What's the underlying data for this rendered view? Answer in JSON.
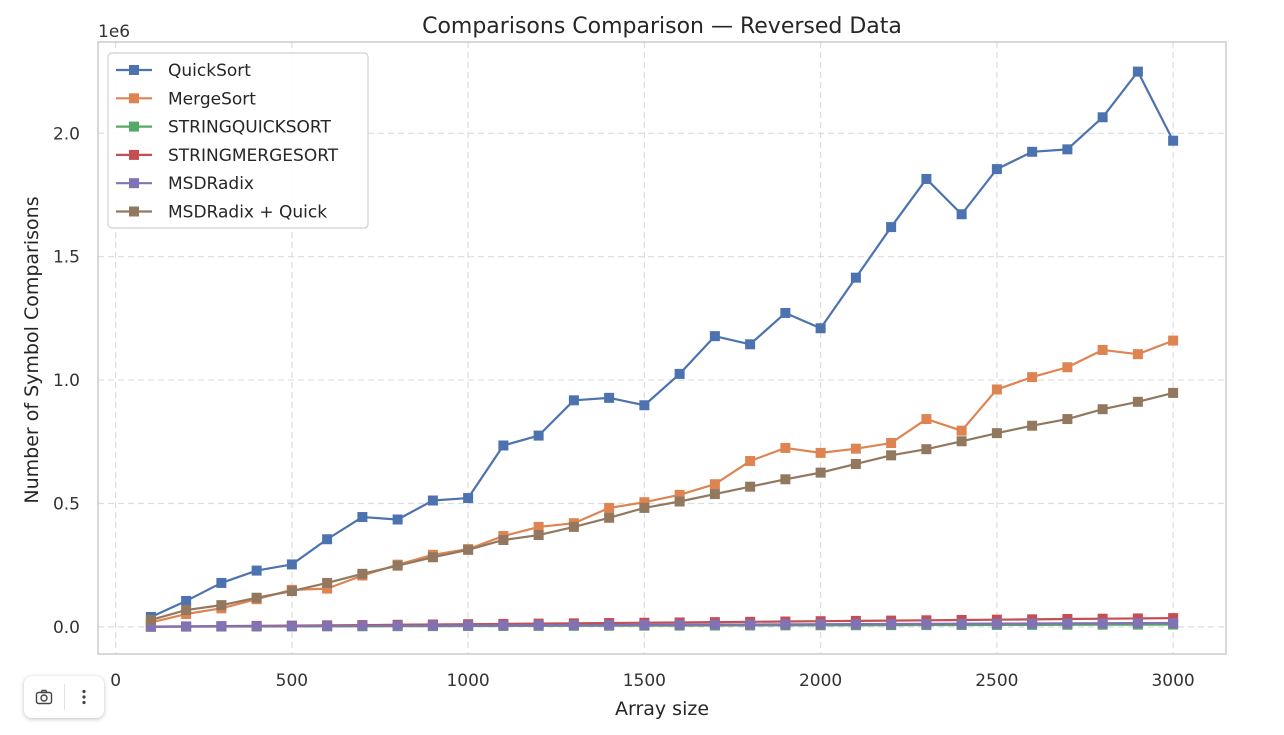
{
  "chart_data": {
    "type": "line",
    "title": "Comparisons Comparison — Reversed Data",
    "xlabel": "Array size",
    "ylabel": "Number of Symbol Comparisons",
    "y_offset_label": "1e6",
    "xlim": [
      -50,
      3150
    ],
    "ylim": [
      -110000,
      2370000
    ],
    "x_ticks": [
      0,
      500,
      1000,
      1500,
      2000,
      2500,
      3000
    ],
    "x_tick_labels": [
      "0",
      "500",
      "1000",
      "1500",
      "2000",
      "2500",
      "3000"
    ],
    "y_ticks": [
      0,
      500000,
      1000000,
      1500000,
      2000000
    ],
    "y_tick_labels": [
      "0.0",
      "0.5",
      "1.0",
      "1.5",
      "2.0"
    ],
    "grid": true,
    "legend_position": "top-left",
    "marker": "square",
    "x": [
      100,
      200,
      300,
      400,
      500,
      600,
      700,
      800,
      900,
      1000,
      1100,
      1200,
      1300,
      1400,
      1500,
      1600,
      1700,
      1800,
      1900,
      2000,
      2100,
      2200,
      2300,
      2400,
      2500,
      2600,
      2700,
      2800,
      2900,
      3000
    ],
    "series": [
      {
        "name": "QuickSort",
        "color": "#4c72b0",
        "values": [
          40000,
          105000,
          178000,
          228000,
          253000,
          355000,
          445000,
          435000,
          512000,
          522000,
          735000,
          775000,
          918000,
          928000,
          898000,
          1025000,
          1178000,
          1145000,
          1272000,
          1210000,
          1415000,
          1620000,
          1815000,
          1672000,
          1855000,
          1925000,
          1935000,
          2065000,
          2250000,
          1970000
        ]
      },
      {
        "name": "MergeSort",
        "color": "#dd8452",
        "values": [
          18000,
          52000,
          75000,
          112000,
          150000,
          155000,
          208000,
          252000,
          292000,
          315000,
          368000,
          405000,
          420000,
          482000,
          505000,
          535000,
          578000,
          672000,
          725000,
          705000,
          722000,
          745000,
          842000,
          795000,
          962000,
          1012000,
          1052000,
          1122000,
          1105000,
          1160000
        ]
      },
      {
        "name": "STRINGQUICKSORT",
        "color": "#55a868",
        "values": [
          500,
          900,
          1200,
          1500,
          1800,
          2100,
          2400,
          2700,
          3000,
          3300,
          3600,
          3900,
          4200,
          4500,
          4800,
          5100,
          5400,
          5700,
          6000,
          6300,
          6600,
          6900,
          7200,
          7500,
          7800,
          8100,
          8400,
          8700,
          9000,
          9300
        ]
      },
      {
        "name": "STRINGMERGESORT",
        "color": "#c44e52",
        "values": [
          800,
          1800,
          2800,
          3900,
          5000,
          6100,
          7200,
          8400,
          9500,
          10700,
          11900,
          13100,
          14300,
          15500,
          16700,
          17900,
          19100,
          20400,
          21600,
          22900,
          24100,
          25400,
          26600,
          27900,
          29100,
          30400,
          31700,
          33000,
          34200,
          35500
        ]
      },
      {
        "name": "MSDRadix",
        "color": "#8172b3",
        "values": [
          1000,
          1500,
          2000,
          2500,
          3000,
          3500,
          4000,
          4500,
          5000,
          5500,
          6000,
          6500,
          7000,
          7500,
          8000,
          8500,
          9000,
          9500,
          10000,
          10500,
          11000,
          11500,
          12000,
          12500,
          13000,
          13500,
          14000,
          14500,
          15000,
          15500
        ]
      },
      {
        "name": "MSDRadix + Quick",
        "color": "#937860",
        "values": [
          28000,
          68000,
          88000,
          118000,
          145000,
          178000,
          215000,
          248000,
          282000,
          312000,
          352000,
          372000,
          405000,
          442000,
          482000,
          508000,
          538000,
          568000,
          598000,
          625000,
          660000,
          695000,
          720000,
          752000,
          785000,
          815000,
          842000,
          882000,
          912000,
          948000
        ]
      }
    ]
  },
  "toolbar": {
    "camera_icon": "camera-icon",
    "more_icon": "more-vertical-icon"
  }
}
